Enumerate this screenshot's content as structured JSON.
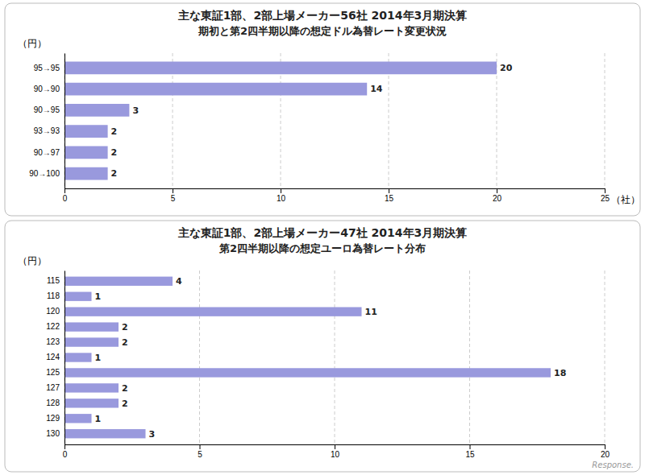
{
  "chart_data": [
    {
      "type": "bar",
      "orientation": "horizontal",
      "title": "主な東証1部、2部上場メーカー56社  2014年3月期決算",
      "subtitle": "期初と第2四半期以降の想定ドル為替レート変更状況",
      "ylabel": "（円）",
      "xlabel": "（社）",
      "categories": [
        "95→95",
        "90→90",
        "90→95",
        "93→93",
        "90→97",
        "90→100"
      ],
      "values": [
        20,
        14,
        3,
        2,
        2,
        2
      ],
      "color": "#9999dd",
      "xlim": [
        0,
        25
      ],
      "xticks": [
        0,
        5,
        10,
        15,
        20,
        25
      ],
      "grid": true,
      "data_labels": true
    },
    {
      "type": "bar",
      "orientation": "horizontal",
      "title": "主な東証1部、2部上場メーカー47社  2014年3月期決算",
      "subtitle": "第2四半期以降の想定ユーロ為替レート分布",
      "ylabel": "（円）",
      "categories": [
        "115",
        "118",
        "120",
        "122",
        "123",
        "124",
        "125",
        "127",
        "128",
        "129",
        "130"
      ],
      "values": [
        4,
        1,
        11,
        2,
        2,
        1,
        18,
        2,
        2,
        1,
        3
      ],
      "color": "#9999dd",
      "xlim": [
        0,
        20
      ],
      "xticks": [
        0,
        5,
        10,
        15,
        20
      ],
      "grid": true,
      "data_labels": true,
      "annotation": "Response."
    }
  ]
}
